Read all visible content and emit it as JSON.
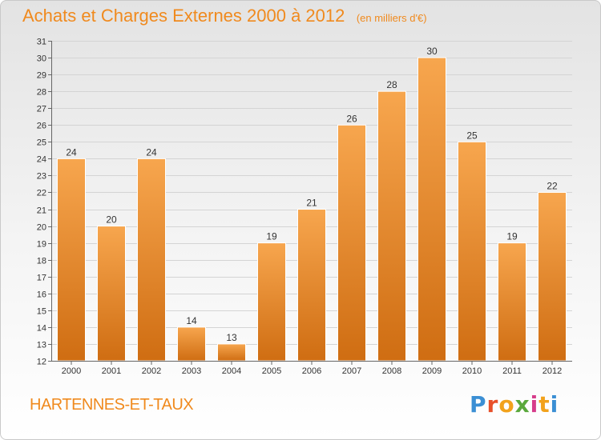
{
  "header": {
    "title": "Achats et Charges Externes 2000 à 2012",
    "subtitle": "(en milliers d'€)"
  },
  "footer": {
    "town": "HARTENNES-ET-TAUX",
    "logo_text": "Proxiti",
    "logo_colors": [
      "#3b8fd4",
      "#e8502a",
      "#f2a21c",
      "#5aa83c",
      "#d63c8b",
      "#f2a21c",
      "#3b8fd4"
    ]
  },
  "chart_data": {
    "type": "bar",
    "categories": [
      "2000",
      "2001",
      "2002",
      "2003",
      "2004",
      "2005",
      "2006",
      "2007",
      "2008",
      "2009",
      "2010",
      "2011",
      "2012"
    ],
    "values": [
      24,
      20,
      24,
      14,
      13,
      19,
      21,
      26,
      28,
      30,
      25,
      19,
      22
    ],
    "ylim": [
      12,
      31
    ],
    "yticks": [
      12,
      13,
      14,
      15,
      16,
      17,
      18,
      19,
      20,
      21,
      22,
      23,
      24,
      25,
      26,
      27,
      28,
      29,
      30,
      31
    ],
    "grid": true,
    "bar_color_top": "#f7a64e",
    "bar_color_bottom": "#cf6d12",
    "title": "Achats et Charges Externes 2000 à 2012",
    "xlabel": "",
    "ylabel": ""
  }
}
